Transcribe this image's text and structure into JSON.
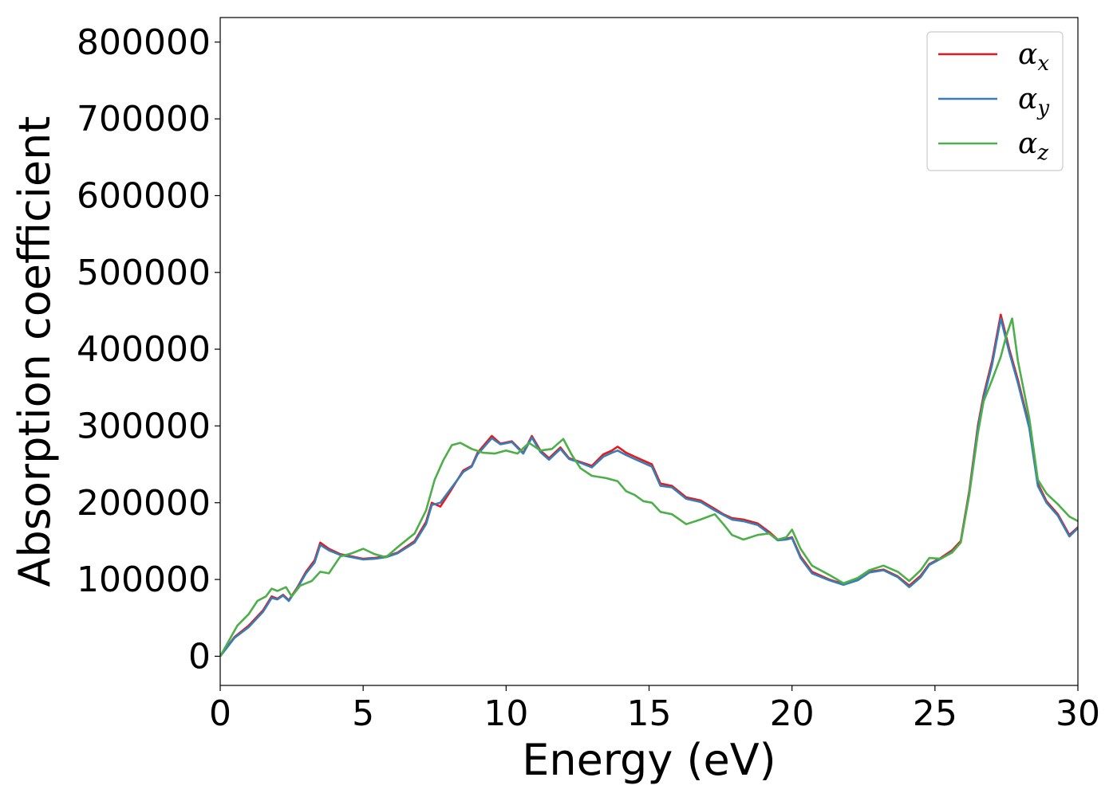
{
  "chart_data": {
    "type": "line",
    "title": "",
    "xlabel": "Energy (eV)",
    "ylabel": "Absorption coefficient",
    "xlim": [
      0,
      30
    ],
    "ylim": [
      -38000,
      832000
    ],
    "xticks": [
      0,
      5,
      10,
      15,
      20,
      25,
      30
    ],
    "xtick_labels": [
      "0",
      "5",
      "10",
      "15",
      "20",
      "25",
      "30"
    ],
    "yticks": [
      0,
      100000,
      200000,
      300000,
      400000,
      500000,
      600000,
      700000,
      800000
    ],
    "ytick_labels": [
      "0",
      "100000",
      "200000",
      "300000",
      "400000",
      "500000",
      "600000",
      "700000",
      "800000"
    ],
    "grid": false,
    "legend_position": "top-right",
    "series": [
      {
        "name": "α",
        "subscript": "x",
        "color": "#e41a1c",
        "points": [
          [
            0,
            0
          ],
          [
            0.5,
            25000
          ],
          [
            1.0,
            40000
          ],
          [
            1.5,
            60000
          ],
          [
            1.8,
            78000
          ],
          [
            2.0,
            75000
          ],
          [
            2.2,
            80000
          ],
          [
            2.4,
            73000
          ],
          [
            2.7,
            90000
          ],
          [
            3.0,
            110000
          ],
          [
            3.3,
            125000
          ],
          [
            3.5,
            148000
          ],
          [
            3.8,
            140000
          ],
          [
            4.2,
            133000
          ],
          [
            4.6,
            130000
          ],
          [
            5.0,
            127000
          ],
          [
            5.4,
            128000
          ],
          [
            5.8,
            130000
          ],
          [
            6.2,
            135000
          ],
          [
            6.8,
            150000
          ],
          [
            7.2,
            175000
          ],
          [
            7.4,
            200000
          ],
          [
            7.7,
            195000
          ],
          [
            8.0,
            212000
          ],
          [
            8.5,
            242000
          ],
          [
            8.8,
            248000
          ],
          [
            9.0,
            265000
          ],
          [
            9.5,
            287000
          ],
          [
            9.8,
            277000
          ],
          [
            10.2,
            280000
          ],
          [
            10.6,
            265000
          ],
          [
            10.9,
            287000
          ],
          [
            11.2,
            268000
          ],
          [
            11.5,
            258000
          ],
          [
            11.9,
            272000
          ],
          [
            12.2,
            258000
          ],
          [
            12.6,
            253000
          ],
          [
            13.0,
            248000
          ],
          [
            13.4,
            263000
          ],
          [
            13.7,
            268000
          ],
          [
            13.9,
            273000
          ],
          [
            14.2,
            265000
          ],
          [
            14.5,
            260000
          ],
          [
            14.8,
            255000
          ],
          [
            15.1,
            250000
          ],
          [
            15.4,
            225000
          ],
          [
            15.8,
            222000
          ],
          [
            16.3,
            207000
          ],
          [
            16.8,
            203000
          ],
          [
            17.3,
            192000
          ],
          [
            17.6,
            185000
          ],
          [
            17.9,
            180000
          ],
          [
            18.3,
            178000
          ],
          [
            18.8,
            173000
          ],
          [
            19.2,
            162000
          ],
          [
            19.5,
            152000
          ],
          [
            19.8,
            153000
          ],
          [
            20.0,
            155000
          ],
          [
            20.3,
            130000
          ],
          [
            20.7,
            110000
          ],
          [
            21.3,
            100000
          ],
          [
            21.8,
            94000
          ],
          [
            22.3,
            100000
          ],
          [
            22.7,
            110000
          ],
          [
            23.2,
            113000
          ],
          [
            23.7,
            104000
          ],
          [
            24.1,
            92000
          ],
          [
            24.5,
            105000
          ],
          [
            24.8,
            120000
          ],
          [
            25.2,
            128000
          ],
          [
            25.6,
            138000
          ],
          [
            25.9,
            150000
          ],
          [
            26.2,
            215000
          ],
          [
            26.5,
            300000
          ],
          [
            26.7,
            340000
          ],
          [
            27.0,
            385000
          ],
          [
            27.3,
            445000
          ],
          [
            27.6,
            400000
          ],
          [
            27.9,
            360000
          ],
          [
            28.3,
            300000
          ],
          [
            28.6,
            225000
          ],
          [
            28.9,
            202000
          ],
          [
            29.3,
            185000
          ],
          [
            29.7,
            158000
          ],
          [
            30.0,
            168000
          ]
        ]
      },
      {
        "name": "α",
        "subscript": "y",
        "color": "#377eb8",
        "points": [
          [
            0,
            0
          ],
          [
            0.5,
            24000
          ],
          [
            1.0,
            38000
          ],
          [
            1.5,
            58000
          ],
          [
            1.8,
            76000
          ],
          [
            2.0,
            74000
          ],
          [
            2.2,
            79000
          ],
          [
            2.4,
            72000
          ],
          [
            2.7,
            89000
          ],
          [
            3.0,
            108000
          ],
          [
            3.3,
            122000
          ],
          [
            3.5,
            145000
          ],
          [
            3.8,
            138000
          ],
          [
            4.2,
            132000
          ],
          [
            4.6,
            129000
          ],
          [
            5.0,
            126000
          ],
          [
            5.4,
            127000
          ],
          [
            5.8,
            129000
          ],
          [
            6.2,
            134000
          ],
          [
            6.8,
            148000
          ],
          [
            7.2,
            172000
          ],
          [
            7.4,
            197000
          ],
          [
            7.7,
            200000
          ],
          [
            8.0,
            215000
          ],
          [
            8.5,
            240000
          ],
          [
            8.8,
            247000
          ],
          [
            9.0,
            263000
          ],
          [
            9.5,
            284000
          ],
          [
            9.8,
            276000
          ],
          [
            10.2,
            279000
          ],
          [
            10.6,
            264000
          ],
          [
            10.9,
            285000
          ],
          [
            11.2,
            266000
          ],
          [
            11.5,
            256000
          ],
          [
            11.9,
            270000
          ],
          [
            12.2,
            257000
          ],
          [
            12.6,
            252000
          ],
          [
            13.0,
            246000
          ],
          [
            13.4,
            260000
          ],
          [
            13.7,
            265000
          ],
          [
            13.9,
            268000
          ],
          [
            14.2,
            262000
          ],
          [
            14.5,
            257000
          ],
          [
            14.8,
            252000
          ],
          [
            15.1,
            247000
          ],
          [
            15.4,
            222000
          ],
          [
            15.8,
            220000
          ],
          [
            16.3,
            205000
          ],
          [
            16.8,
            201000
          ],
          [
            17.3,
            190000
          ],
          [
            17.6,
            184000
          ],
          [
            17.9,
            178000
          ],
          [
            18.3,
            176000
          ],
          [
            18.8,
            171000
          ],
          [
            19.2,
            160000
          ],
          [
            19.5,
            151000
          ],
          [
            19.8,
            152000
          ],
          [
            20.0,
            154000
          ],
          [
            20.3,
            128000
          ],
          [
            20.7,
            108000
          ],
          [
            21.3,
            99000
          ],
          [
            21.8,
            93000
          ],
          [
            22.3,
            99000
          ],
          [
            22.7,
            109000
          ],
          [
            23.2,
            112000
          ],
          [
            23.7,
            103000
          ],
          [
            24.1,
            90000
          ],
          [
            24.5,
            103000
          ],
          [
            24.8,
            119000
          ],
          [
            25.2,
            127000
          ],
          [
            25.6,
            136000
          ],
          [
            25.9,
            148000
          ],
          [
            26.2,
            212000
          ],
          [
            26.5,
            296000
          ],
          [
            26.7,
            336000
          ],
          [
            27.0,
            380000
          ],
          [
            27.3,
            440000
          ],
          [
            27.6,
            396000
          ],
          [
            27.9,
            356000
          ],
          [
            28.3,
            297000
          ],
          [
            28.6,
            222000
          ],
          [
            28.9,
            200000
          ],
          [
            29.3,
            183000
          ],
          [
            29.7,
            156000
          ],
          [
            30.0,
            167000
          ]
        ]
      },
      {
        "name": "α",
        "subscript": "z",
        "color": "#4daf4a",
        "points": [
          [
            0,
            0
          ],
          [
            0.3,
            20000
          ],
          [
            0.6,
            40000
          ],
          [
            1.0,
            55000
          ],
          [
            1.3,
            72000
          ],
          [
            1.6,
            78000
          ],
          [
            1.8,
            88000
          ],
          [
            2.0,
            85000
          ],
          [
            2.3,
            90000
          ],
          [
            2.5,
            78000
          ],
          [
            2.8,
            92000
          ],
          [
            3.2,
            98000
          ],
          [
            3.5,
            110000
          ],
          [
            3.8,
            108000
          ],
          [
            4.2,
            130000
          ],
          [
            4.6,
            134000
          ],
          [
            5.0,
            140000
          ],
          [
            5.4,
            133000
          ],
          [
            5.8,
            129000
          ],
          [
            6.2,
            142000
          ],
          [
            6.8,
            160000
          ],
          [
            7.2,
            190000
          ],
          [
            7.5,
            230000
          ],
          [
            7.8,
            255000
          ],
          [
            8.1,
            275000
          ],
          [
            8.4,
            278000
          ],
          [
            8.8,
            270000
          ],
          [
            9.2,
            265000
          ],
          [
            9.6,
            264000
          ],
          [
            10.0,
            268000
          ],
          [
            10.4,
            264000
          ],
          [
            10.8,
            278000
          ],
          [
            11.2,
            268000
          ],
          [
            11.6,
            270000
          ],
          [
            12.0,
            283000
          ],
          [
            12.3,
            262000
          ],
          [
            12.6,
            245000
          ],
          [
            13.0,
            235000
          ],
          [
            13.5,
            232000
          ],
          [
            13.9,
            228000
          ],
          [
            14.2,
            215000
          ],
          [
            14.5,
            210000
          ],
          [
            14.8,
            202000
          ],
          [
            15.1,
            200000
          ],
          [
            15.4,
            188000
          ],
          [
            15.8,
            185000
          ],
          [
            16.3,
            172000
          ],
          [
            16.8,
            178000
          ],
          [
            17.3,
            185000
          ],
          [
            17.6,
            172000
          ],
          [
            17.9,
            158000
          ],
          [
            18.3,
            152000
          ],
          [
            18.8,
            158000
          ],
          [
            19.2,
            160000
          ],
          [
            19.5,
            152000
          ],
          [
            19.8,
            155000
          ],
          [
            20.0,
            165000
          ],
          [
            20.3,
            140000
          ],
          [
            20.7,
            118000
          ],
          [
            21.3,
            106000
          ],
          [
            21.8,
            95000
          ],
          [
            22.3,
            102000
          ],
          [
            22.7,
            112000
          ],
          [
            23.2,
            118000
          ],
          [
            23.7,
            110000
          ],
          [
            24.1,
            98000
          ],
          [
            24.5,
            112000
          ],
          [
            24.8,
            128000
          ],
          [
            25.2,
            127000
          ],
          [
            25.6,
            135000
          ],
          [
            25.9,
            148000
          ],
          [
            26.2,
            210000
          ],
          [
            26.5,
            290000
          ],
          [
            26.7,
            332000
          ],
          [
            27.0,
            360000
          ],
          [
            27.3,
            390000
          ],
          [
            27.5,
            418000
          ],
          [
            27.7,
            440000
          ],
          [
            27.9,
            385000
          ],
          [
            28.3,
            310000
          ],
          [
            28.6,
            230000
          ],
          [
            28.9,
            212000
          ],
          [
            29.3,
            198000
          ],
          [
            29.7,
            182000
          ],
          [
            30.0,
            176000
          ]
        ]
      }
    ]
  }
}
